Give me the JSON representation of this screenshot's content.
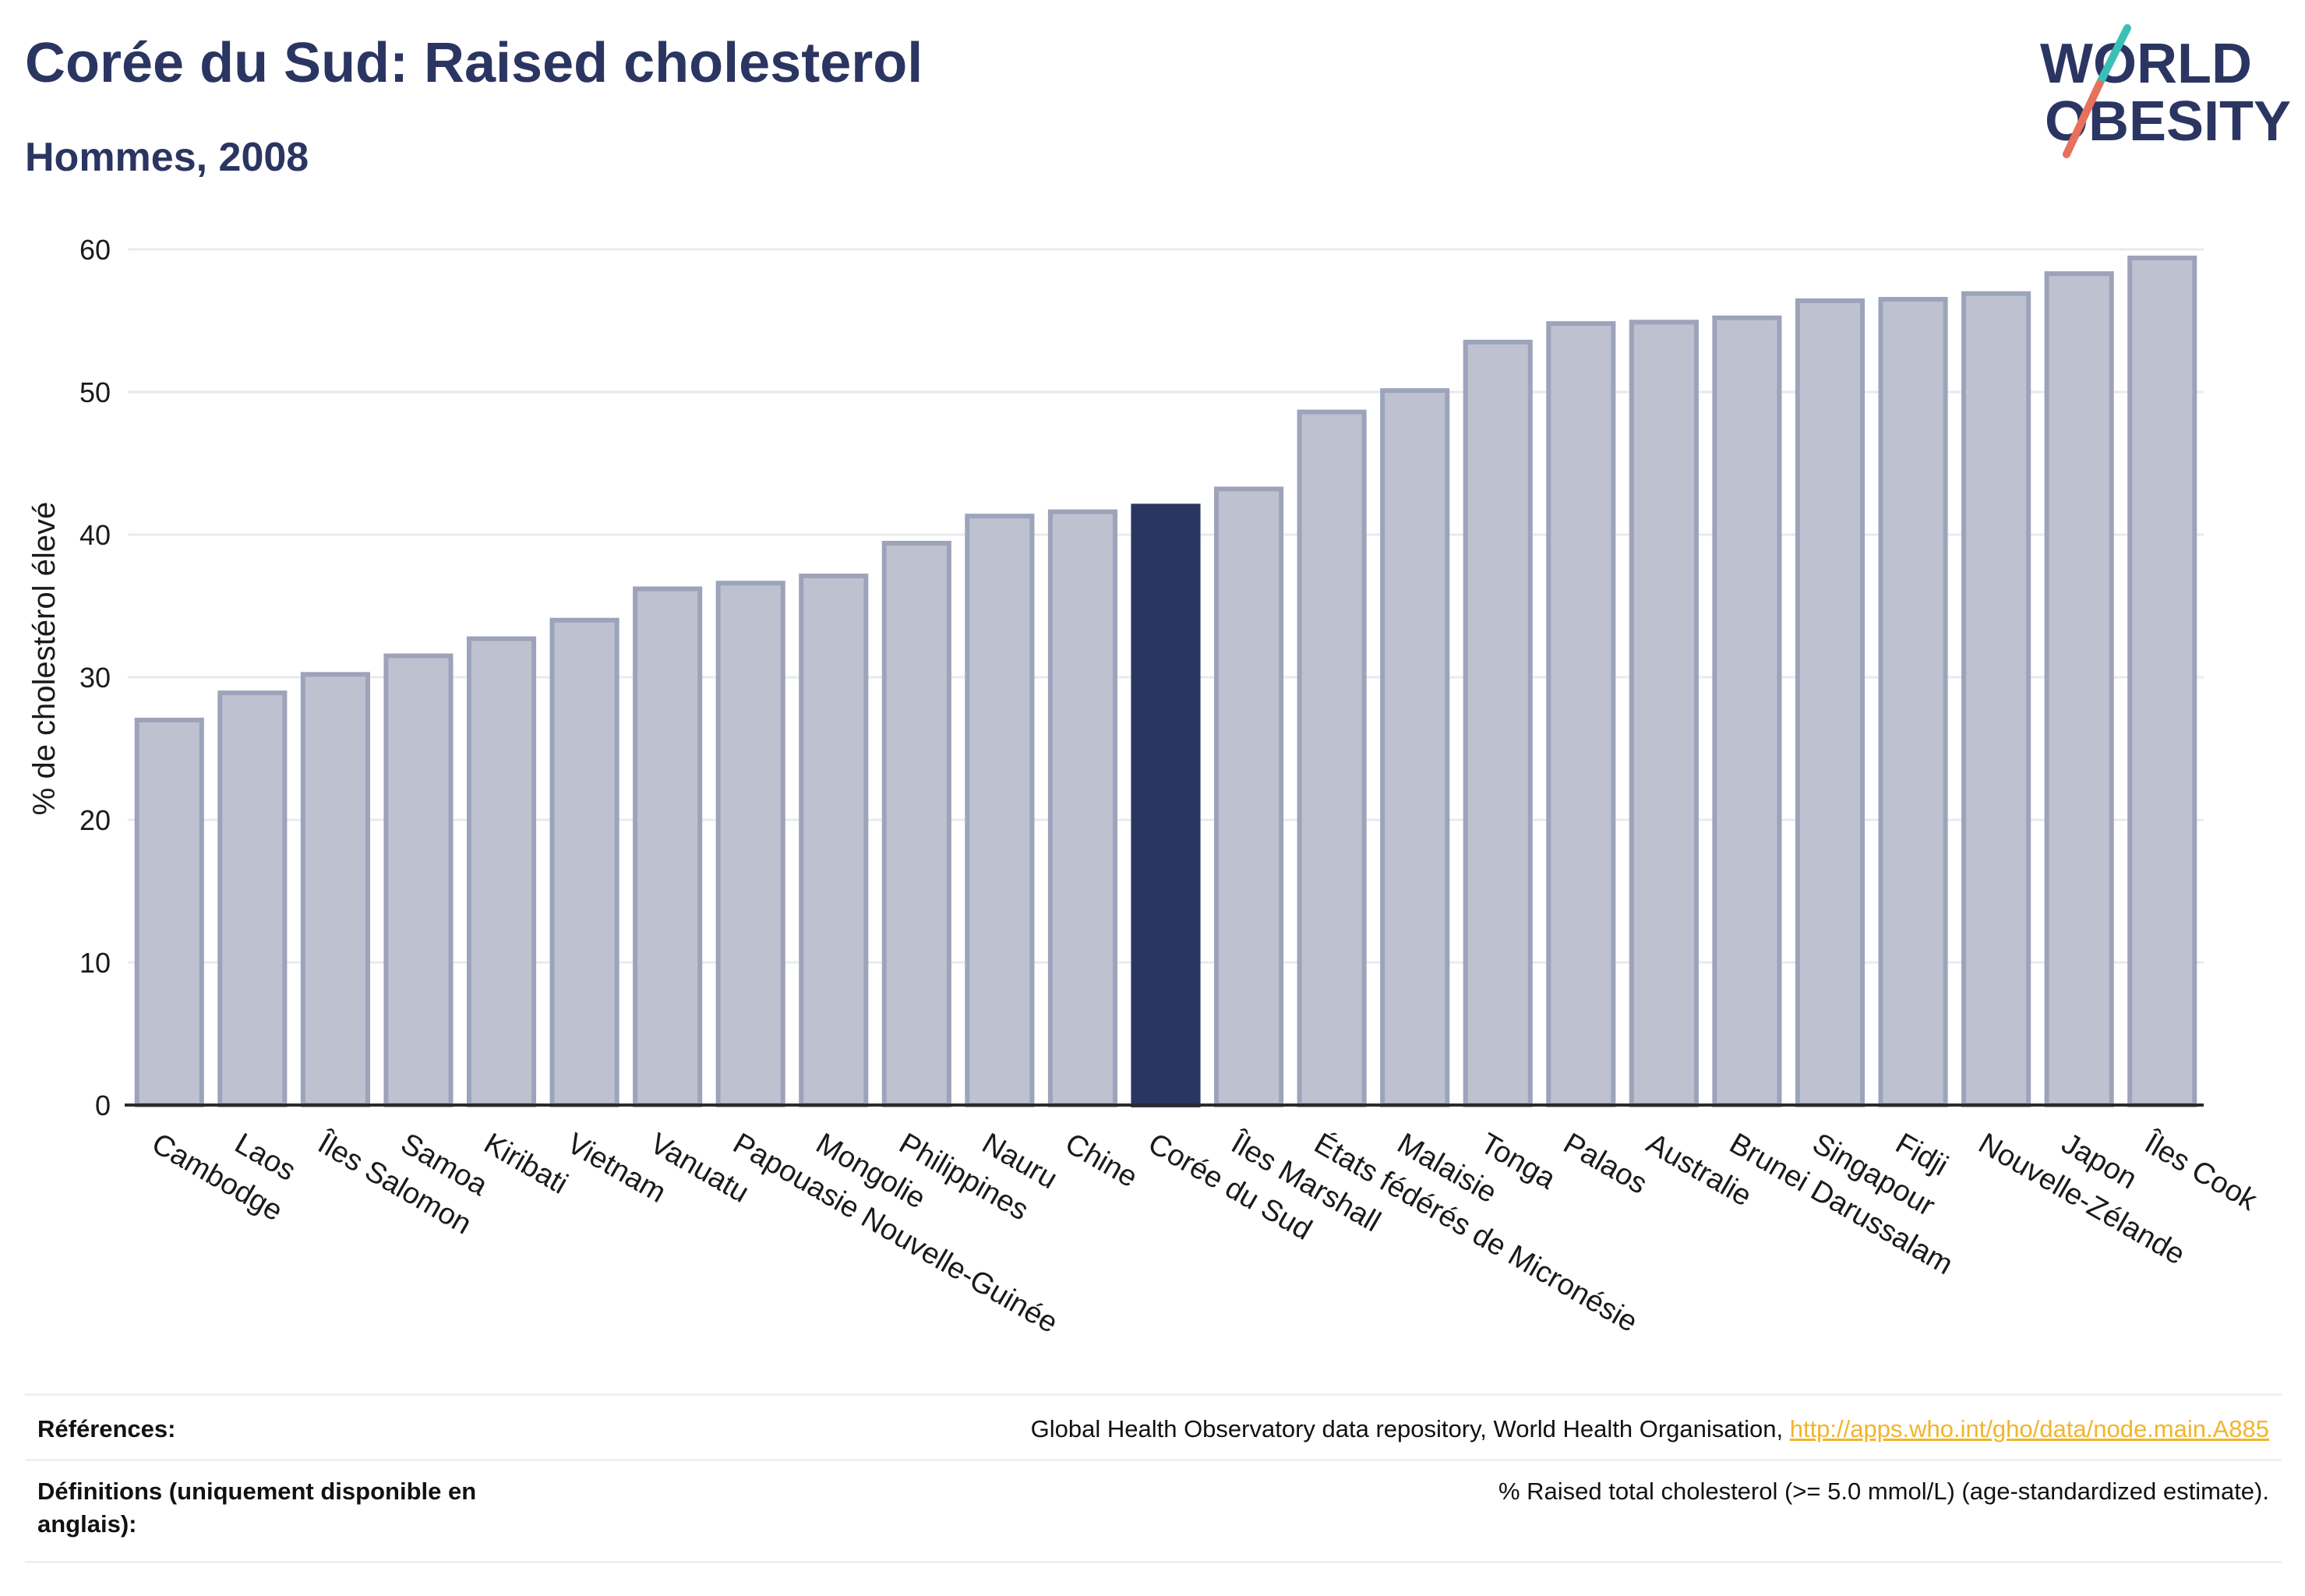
{
  "header": {
    "title": "Corée du Sud: Raised cholesterol",
    "subtitle": "Hommes, 2008"
  },
  "logo": {
    "line1": "WORLD",
    "line2": "OBESITY",
    "colors": {
      "navy": "#2b3561",
      "teal": "#3bbfb7",
      "coral": "#e8705c"
    }
  },
  "chart_data": {
    "type": "bar",
    "title": "Corée du Sud: Raised cholesterol",
    "subtitle": "Hommes, 2008",
    "xlabel": "",
    "ylabel": "% de cholestérol élevé",
    "ylim": [
      0,
      60
    ],
    "yticks": [
      0,
      10,
      20,
      30,
      40,
      50,
      60
    ],
    "grid": true,
    "highlight": "Corée du Sud",
    "colors": {
      "bar": "#bec2d0",
      "bar_border": "#9ca3ba",
      "highlight": "#2b3561"
    },
    "categories": [
      "Cambodge",
      "Laos",
      "Îles Salomon",
      "Samoa",
      "Kiribati",
      "Vietnam",
      "Vanuatu",
      "Papouasie Nouvelle-Guinée",
      "Mongolie",
      "Philippines",
      "Nauru",
      "Chine",
      "Corée du Sud",
      "Îles Marshall",
      "États fédérés de Micronésie",
      "Malaisie",
      "Tonga",
      "Palaos",
      "Australie",
      "Brunei Darussalam",
      "Singapour",
      "Fidji",
      "Nouvelle-Zélande",
      "Japon",
      "Îles Cook"
    ],
    "values": [
      27.0,
      28.9,
      30.2,
      31.5,
      32.7,
      34.0,
      36.2,
      36.6,
      37.1,
      39.4,
      41.3,
      41.6,
      42.0,
      43.2,
      48.6,
      50.1,
      53.5,
      54.8,
      54.9,
      55.2,
      56.4,
      56.5,
      56.9,
      58.3,
      59.4
    ]
  },
  "footer": {
    "references_label": "Références:",
    "references_text": "Global Health Observatory data repository, World Health Organisation, ",
    "references_link": "http://apps.who.int/gho/data/node.main.A885",
    "definitions_label": "Définitions (uniquement disponible en anglais):",
    "definitions_text": "% Raised total cholesterol (>= 5.0 mmol/L) (age-standardized estimate)."
  }
}
